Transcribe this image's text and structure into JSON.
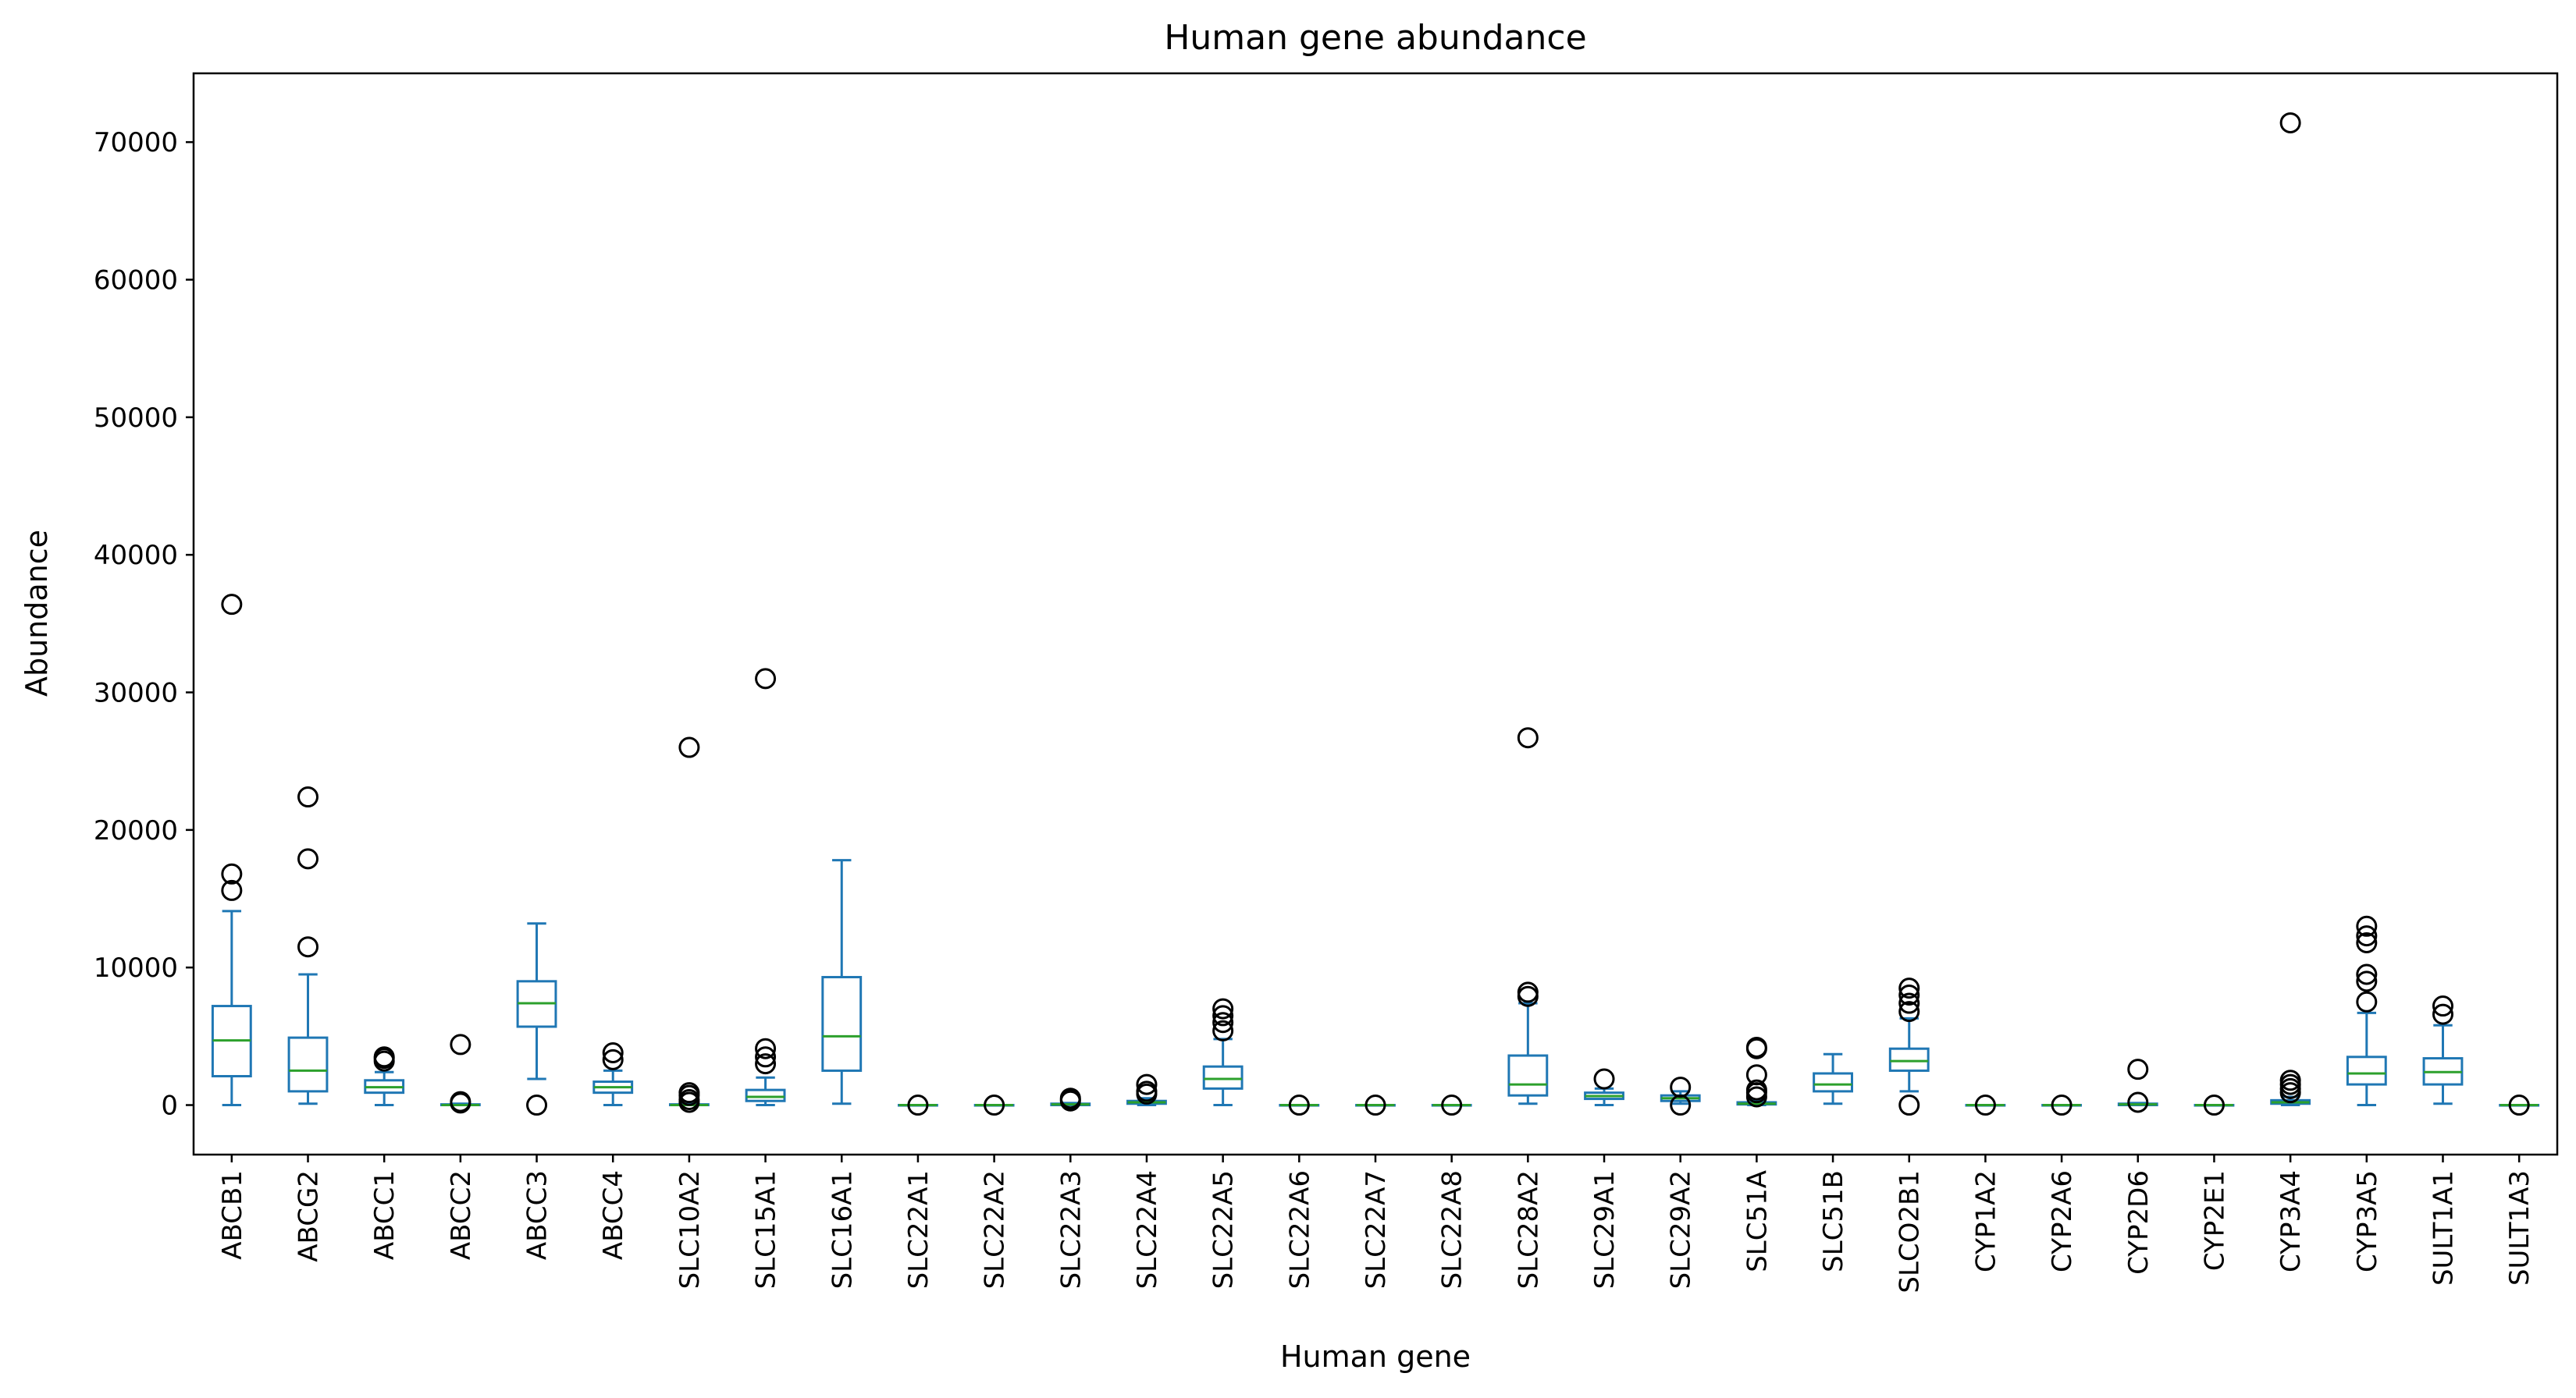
{
  "chart_data": {
    "type": "box",
    "title": "Human gene abundance",
    "xlabel": "Human gene",
    "ylabel": "Abundance",
    "ylim": [
      -3600,
      75000
    ],
    "yticks": [
      0,
      10000,
      20000,
      30000,
      40000,
      50000,
      60000,
      70000
    ],
    "grid": false,
    "colors": {
      "box": "#1f77b4",
      "median": "#2ca02c",
      "flier": "#000000",
      "frame": "#000000"
    },
    "categories": [
      "ABCB1",
      "ABCG2",
      "ABCC1",
      "ABCC2",
      "ABCC3",
      "ABCC4",
      "SLC10A2",
      "SLC15A1",
      "SLC16A1",
      "SLC22A1",
      "SLC22A2",
      "SLC22A3",
      "SLC22A4",
      "SLC22A5",
      "SLC22A6",
      "SLC22A7",
      "SLC22A8",
      "SLC28A2",
      "SLC29A1",
      "SLC29A2",
      "SLC51A",
      "SLC51B",
      "SLCO2B1",
      "CYP1A2",
      "CYP2A6",
      "CYP2D6",
      "CYP2E1",
      "CYP3A4",
      "CYP3A5",
      "SULT1A1",
      "SULT1A3"
    ],
    "boxes": [
      {
        "label": "ABCB1",
        "whislo": 0,
        "q1": 2100,
        "med": 4700,
        "q3": 7200,
        "whishi": 14100,
        "fliers": [
          15600,
          16800,
          36400
        ]
      },
      {
        "label": "ABCG2",
        "whislo": 100,
        "q1": 1000,
        "med": 2500,
        "q3": 4900,
        "whishi": 9500,
        "fliers": [
          11500,
          17900,
          22400
        ]
      },
      {
        "label": "ABCC1",
        "whislo": 0,
        "q1": 900,
        "med": 1300,
        "q3": 1800,
        "whishi": 2400,
        "fliers": [
          3200,
          3400,
          3500
        ]
      },
      {
        "label": "ABCC2",
        "whislo": 0,
        "q1": 0,
        "med": 0,
        "q3": 50,
        "whishi": 100,
        "fliers": [
          150,
          250,
          4400
        ]
      },
      {
        "label": "ABCC3",
        "whislo": 1900,
        "q1": 5700,
        "med": 7400,
        "q3": 9000,
        "whishi": 13200,
        "fliers": [
          0
        ]
      },
      {
        "label": "ABCC4",
        "whislo": 0,
        "q1": 900,
        "med": 1300,
        "q3": 1700,
        "whishi": 2500,
        "fliers": [
          3300,
          3800
        ]
      },
      {
        "label": "SLC10A2",
        "whislo": 0,
        "q1": 0,
        "med": 0,
        "q3": 50,
        "whishi": 100,
        "fliers": [
          200,
          400,
          700,
          900,
          26000
        ]
      },
      {
        "label": "SLC15A1",
        "whislo": 0,
        "q1": 300,
        "med": 600,
        "q3": 1100,
        "whishi": 2000,
        "fliers": [
          3000,
          3500,
          4100,
          31000
        ]
      },
      {
        "label": "SLC16A1",
        "whislo": 100,
        "q1": 2500,
        "med": 5000,
        "q3": 9300,
        "whishi": 17800,
        "fliers": []
      },
      {
        "label": "SLC22A1",
        "whislo": 0,
        "q1": 0,
        "med": 0,
        "q3": 0,
        "whishi": 0,
        "fliers": [
          0
        ]
      },
      {
        "label": "SLC22A2",
        "whislo": 0,
        "q1": 0,
        "med": 0,
        "q3": 0,
        "whishi": 0,
        "fliers": [
          0
        ]
      },
      {
        "label": "SLC22A3",
        "whislo": 0,
        "q1": 0,
        "med": 50,
        "q3": 100,
        "whishi": 150,
        "fliers": [
          300,
          400,
          500
        ]
      },
      {
        "label": "SLC22A4",
        "whislo": 0,
        "q1": 100,
        "med": 200,
        "q3": 300,
        "whishi": 500,
        "fliers": [
          800,
          1000,
          1500
        ]
      },
      {
        "label": "SLC22A5",
        "whislo": 0,
        "q1": 1200,
        "med": 1900,
        "q3": 2800,
        "whishi": 4800,
        "fliers": [
          5400,
          6000,
          6500,
          7000
        ]
      },
      {
        "label": "SLC22A6",
        "whislo": 0,
        "q1": 0,
        "med": 0,
        "q3": 0,
        "whishi": 0,
        "fliers": [
          0
        ]
      },
      {
        "label": "SLC22A7",
        "whislo": 0,
        "q1": 0,
        "med": 0,
        "q3": 0,
        "whishi": 0,
        "fliers": [
          0
        ]
      },
      {
        "label": "SLC22A8",
        "whislo": 0,
        "q1": 0,
        "med": 0,
        "q3": 0,
        "whishi": 0,
        "fliers": [
          0
        ]
      },
      {
        "label": "SLC28A2",
        "whislo": 100,
        "q1": 700,
        "med": 1500,
        "q3": 3600,
        "whishi": 7400,
        "fliers": [
          7900,
          8200,
          26700
        ]
      },
      {
        "label": "SLC29A1",
        "whislo": 0,
        "q1": 450,
        "med": 650,
        "q3": 900,
        "whishi": 1200,
        "fliers": [
          1900
        ]
      },
      {
        "label": "SLC29A2",
        "whislo": 100,
        "q1": 300,
        "med": 500,
        "q3": 700,
        "whishi": 1000,
        "fliers": [
          0,
          1300
        ]
      },
      {
        "label": "SLC51A",
        "whislo": 0,
        "q1": 50,
        "med": 100,
        "q3": 200,
        "whishi": 400,
        "fliers": [
          600,
          900,
          1100,
          2200,
          4100,
          4200
        ]
      },
      {
        "label": "SLC51B",
        "whislo": 100,
        "q1": 1000,
        "med": 1500,
        "q3": 2300,
        "whishi": 3700,
        "fliers": []
      },
      {
        "label": "SLCO2B1",
        "whislo": 1000,
        "q1": 2500,
        "med": 3200,
        "q3": 4100,
        "whishi": 6300,
        "fliers": [
          0,
          6800,
          7400,
          8000,
          8500
        ]
      },
      {
        "label": "CYP1A2",
        "whislo": 0,
        "q1": 0,
        "med": 0,
        "q3": 0,
        "whishi": 0,
        "fliers": [
          0
        ]
      },
      {
        "label": "CYP2A6",
        "whislo": 0,
        "q1": 0,
        "med": 0,
        "q3": 0,
        "whishi": 0,
        "fliers": [
          0
        ]
      },
      {
        "label": "CYP2D6",
        "whislo": 0,
        "q1": 0,
        "med": 50,
        "q3": 100,
        "whishi": 150,
        "fliers": [
          200,
          2600
        ]
      },
      {
        "label": "CYP2E1",
        "whislo": 0,
        "q1": 0,
        "med": 0,
        "q3": 0,
        "whishi": 0,
        "fliers": [
          0
        ]
      },
      {
        "label": "CYP3A4",
        "whislo": 0,
        "q1": 100,
        "med": 200,
        "q3": 350,
        "whishi": 600,
        "fliers": [
          900,
          1200,
          1500,
          1800,
          71400
        ]
      },
      {
        "label": "CYP3A5",
        "whislo": 0,
        "q1": 1500,
        "med": 2300,
        "q3": 3500,
        "whishi": 6700,
        "fliers": [
          7500,
          9000,
          9500,
          11800,
          12300,
          13000
        ]
      },
      {
        "label": "SULT1A1",
        "whislo": 100,
        "q1": 1500,
        "med": 2400,
        "q3": 3400,
        "whishi": 5800,
        "fliers": [
          6600,
          7200
        ]
      },
      {
        "label": "SULT1A3",
        "whislo": 0,
        "q1": 0,
        "med": 0,
        "q3": 0,
        "whishi": 0,
        "fliers": [
          0
        ]
      }
    ]
  }
}
